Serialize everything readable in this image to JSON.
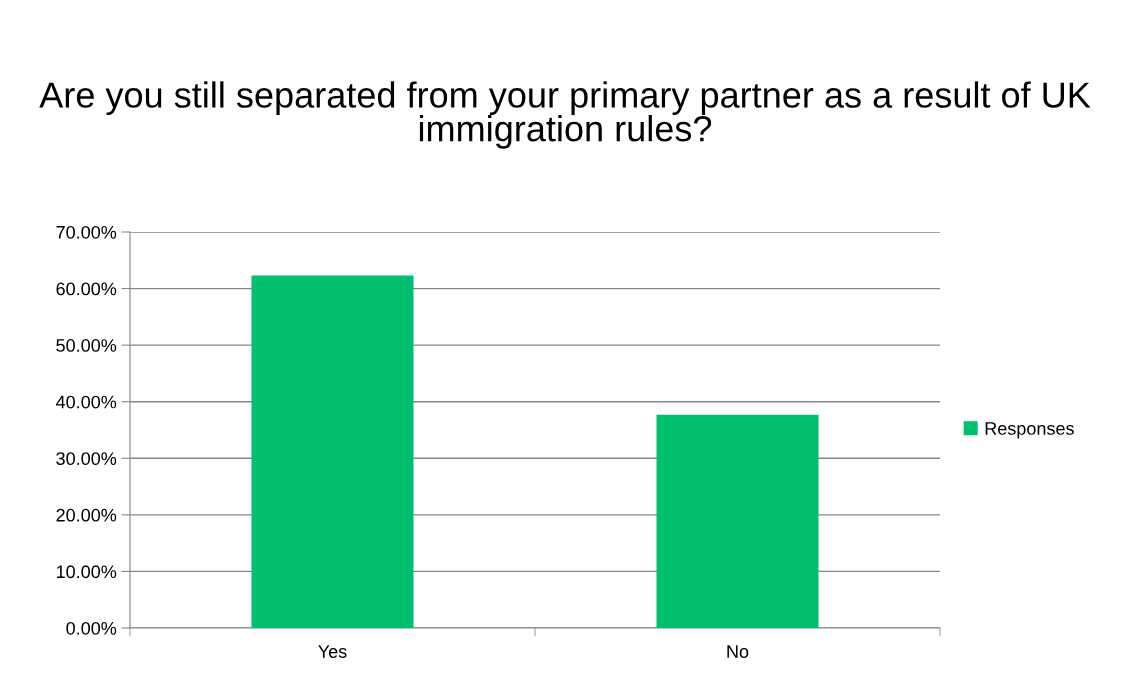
{
  "chart_data": {
    "type": "bar",
    "title": "Are you still separated from your primary partner as a result of UK immigration rules?",
    "categories": [
      "Yes",
      "No"
    ],
    "series": [
      {
        "name": "Responses",
        "color": "#00bf6f",
        "values": [
          62.3,
          37.7
        ]
      }
    ],
    "ylim": [
      0,
      70
    ],
    "yticks": [
      {
        "value": 0,
        "label": "0.00%"
      },
      {
        "value": 10,
        "label": "10.00%"
      },
      {
        "value": 20,
        "label": "20.00%"
      },
      {
        "value": 30,
        "label": "30.00%"
      },
      {
        "value": 40,
        "label": "40.00%"
      },
      {
        "value": 50,
        "label": "50.00%"
      },
      {
        "value": 60,
        "label": "60.00%"
      },
      {
        "value": 70,
        "label": "70.00%"
      }
    ],
    "grid": "y",
    "legend": "right"
  }
}
